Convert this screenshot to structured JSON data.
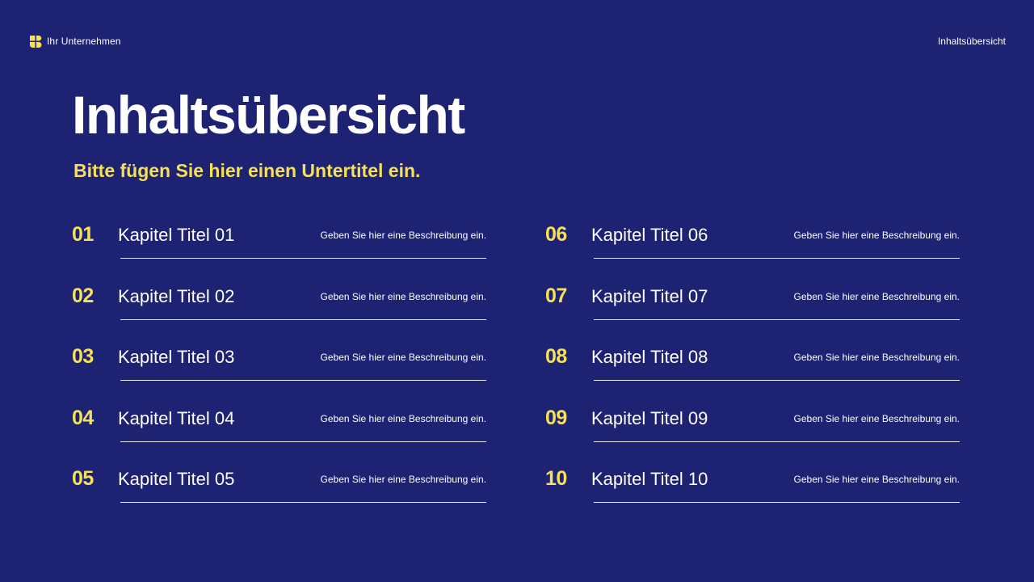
{
  "header": {
    "brand_name": "Ihr Unternehmen",
    "section_label": "Inhaltsübersicht",
    "logo_icon": "brand-logo-icon",
    "accent_color": "#f5e05a",
    "background_color": "#1e2272"
  },
  "main": {
    "title": "Inhaltsübersicht",
    "subtitle": "Bitte fügen Sie hier einen Untertitel ein."
  },
  "chapters": [
    {
      "number": "01",
      "title": "Kapitel Titel 01",
      "description": "Geben Sie hier eine Beschreibung ein."
    },
    {
      "number": "02",
      "title": "Kapitel Titel 02",
      "description": "Geben Sie hier eine Beschreibung ein."
    },
    {
      "number": "03",
      "title": "Kapitel Titel 03",
      "description": "Geben Sie hier eine Beschreibung ein."
    },
    {
      "number": "04",
      "title": "Kapitel Titel 04",
      "description": "Geben Sie hier eine Beschreibung ein."
    },
    {
      "number": "05",
      "title": "Kapitel Titel 05",
      "description": "Geben Sie hier eine Beschreibung ein."
    },
    {
      "number": "06",
      "title": "Kapitel Titel 06",
      "description": "Geben Sie hier eine Beschreibung ein."
    },
    {
      "number": "07",
      "title": "Kapitel Titel 07",
      "description": "Geben Sie hier eine Beschreibung ein."
    },
    {
      "number": "08",
      "title": "Kapitel Titel 08",
      "description": "Geben Sie hier eine Beschreibung ein."
    },
    {
      "number": "09",
      "title": "Kapitel Titel 09",
      "description": "Geben Sie hier eine Beschreibung ein."
    },
    {
      "number": "10",
      "title": "Kapitel Titel 10",
      "description": "Geben Sie hier eine Beschreibung ein."
    }
  ]
}
